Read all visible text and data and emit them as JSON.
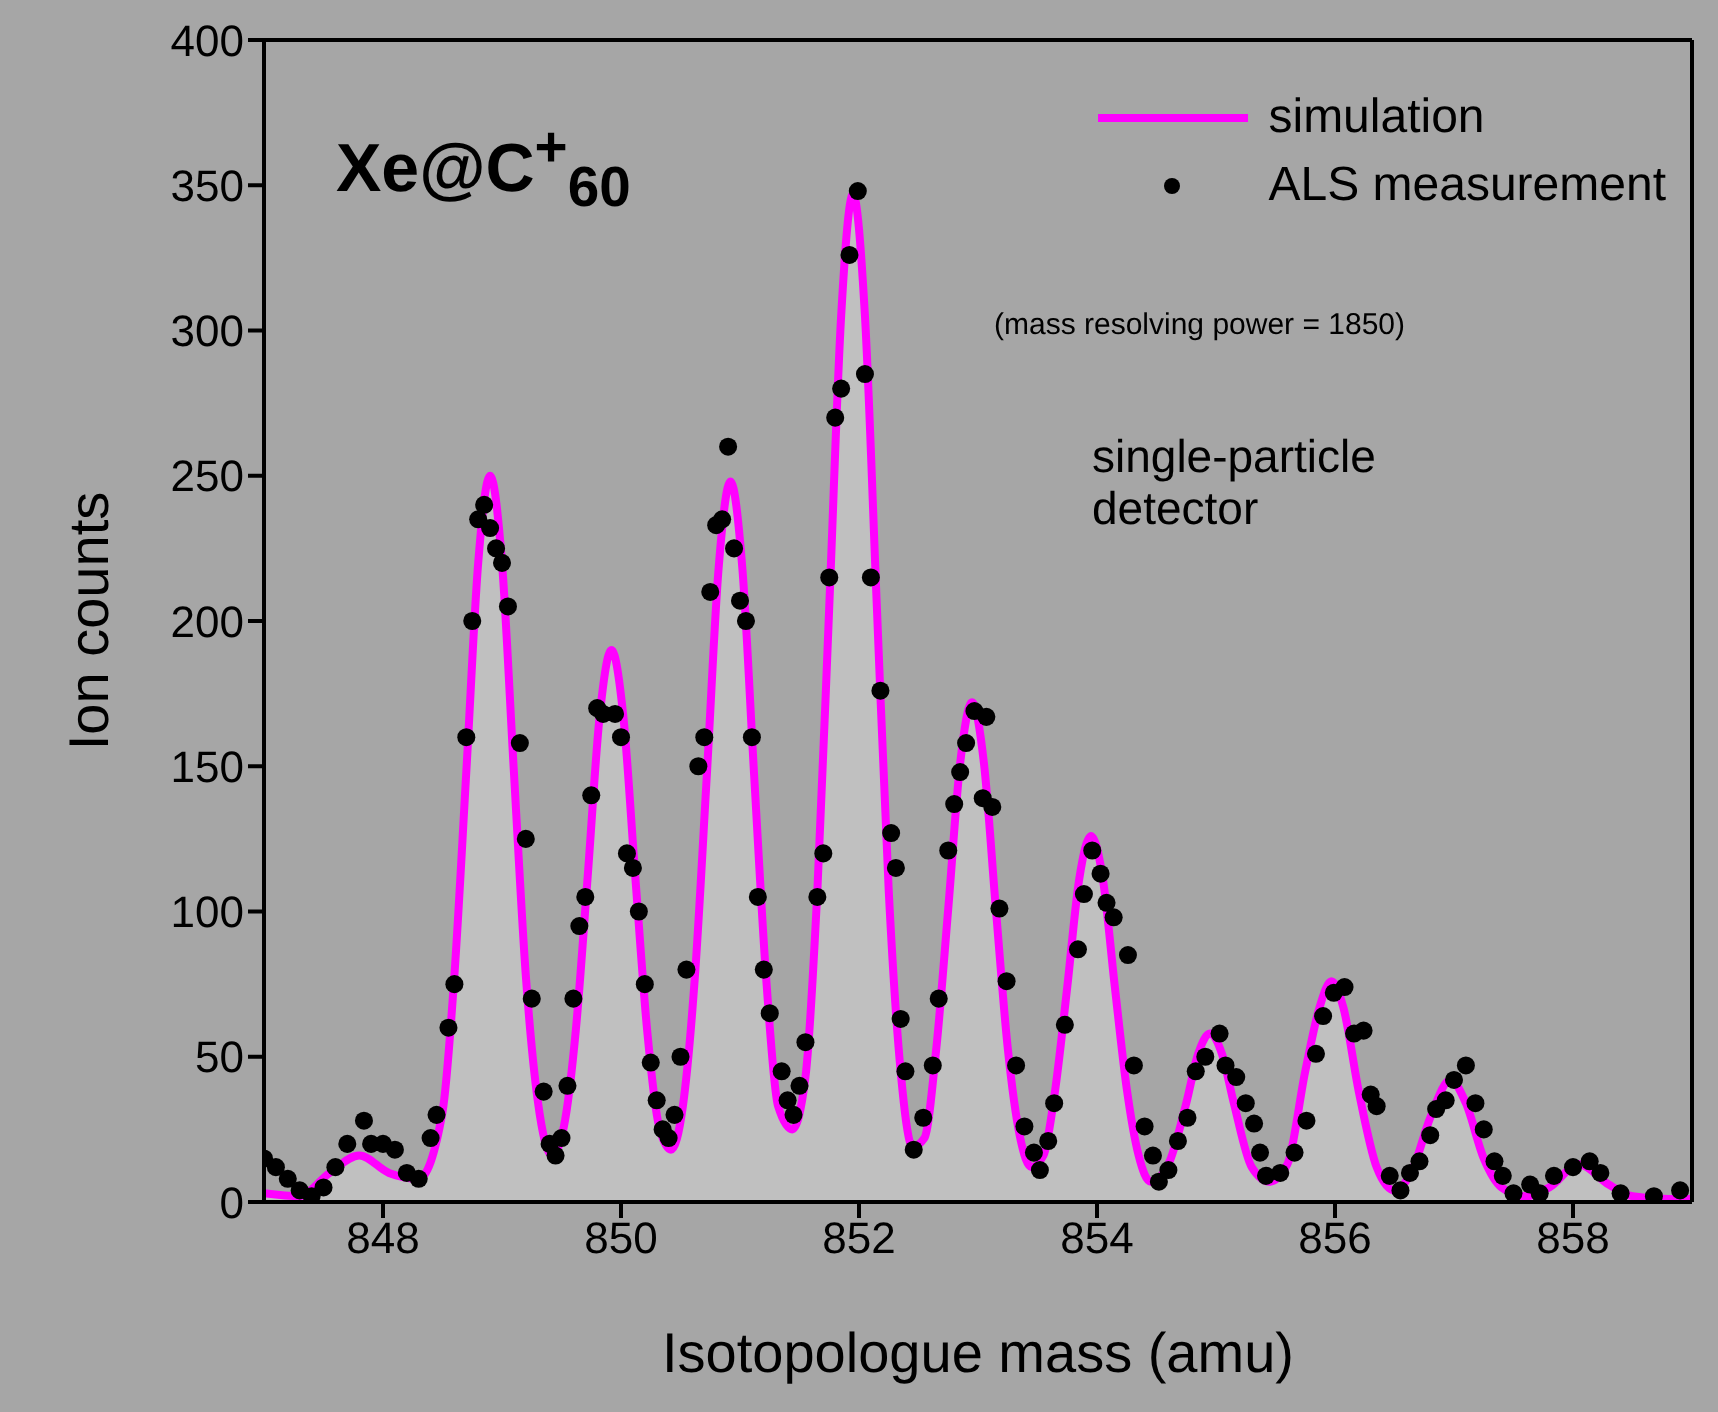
{
  "chart_data": {
    "type": "scatter",
    "xlabel": "Isotopologue mass (amu)",
    "ylabel": "Ion counts",
    "xlim": [
      847,
      859
    ],
    "xticks": [
      848,
      850,
      852,
      854,
      856,
      858
    ],
    "ylim": [
      0,
      400
    ],
    "yticks": [
      0,
      50,
      100,
      150,
      200,
      250,
      300,
      350,
      400
    ],
    "legend": "top right",
    "annotations": [
      "Xe@C$^{+}$$_{60}$",
      "(mass resolving power = 1850)",
      "single-particle detector"
    ],
    "series": [
      {
        "name": "simulation",
        "type": "area",
        "color": "#ff00ff",
        "marker": "none",
        "x": [
          847.0,
          847.3,
          847.55,
          847.8,
          848.05,
          848.3,
          848.5,
          848.6,
          848.7,
          848.8,
          848.9,
          849.0,
          849.1,
          849.2,
          849.3,
          849.42,
          849.52,
          849.62,
          849.72,
          849.82,
          849.92,
          850.02,
          850.12,
          850.22,
          850.32,
          850.42,
          850.52,
          850.62,
          850.72,
          850.82,
          850.92,
          851.02,
          851.12,
          851.22,
          851.32,
          851.44,
          851.55,
          851.65,
          851.75,
          851.85,
          851.95,
          852.05,
          852.15,
          852.25,
          852.35,
          852.45,
          852.55,
          852.65,
          852.75,
          852.85,
          852.95,
          853.05,
          853.15,
          853.25,
          853.35,
          853.45,
          853.55,
          853.65,
          853.75,
          853.85,
          853.95,
          854.05,
          854.15,
          854.25,
          854.35,
          854.45,
          854.6,
          854.75,
          854.85,
          854.95,
          855.05,
          855.15,
          855.3,
          855.45,
          855.6,
          855.75,
          855.87,
          855.97,
          856.07,
          856.2,
          856.35,
          856.5,
          856.65,
          856.8,
          856.97,
          857.1,
          857.25,
          857.4,
          857.6,
          857.8,
          858.05,
          858.3,
          858.5,
          858.8,
          859.0
        ],
        "values": [
          3,
          2,
          10,
          16,
          10,
          8,
          31,
          78,
          148,
          220,
          250,
          220,
          148,
          78,
          35,
          16,
          26,
          59,
          112,
          167,
          190,
          167,
          112,
          59,
          26,
          18,
          33,
          77,
          146,
          218,
          248,
          218,
          146,
          77,
          33,
          25,
          43,
          107,
          205,
          305,
          347,
          305,
          205,
          107,
          45,
          19,
          22,
          53,
          101,
          151,
          172,
          151,
          101,
          53,
          23,
          12,
          16,
          39,
          74,
          111,
          126,
          111,
          74,
          39,
          16,
          7,
          13,
          34,
          51,
          58,
          51,
          34,
          12,
          7,
          13,
          45,
          67,
          76,
          67,
          38,
          12,
          4,
          11,
          29,
          42,
          34,
          15,
          5,
          2,
          5,
          13,
          6,
          2,
          1,
          1
        ]
      },
      {
        "name": "ALS measurement",
        "color": "#000000",
        "marker": "circle",
        "x": [
          847.0,
          847.1,
          847.2,
          847.3,
          847.4,
          847.5,
          847.6,
          847.7,
          847.84,
          847.9,
          848.0,
          848.1,
          848.2,
          848.3,
          848.4,
          848.45,
          848.55,
          848.6,
          848.7,
          848.75,
          848.8,
          848.85,
          848.9,
          848.95,
          849.0,
          849.05,
          849.15,
          849.2,
          849.25,
          849.35,
          849.4,
          849.45,
          849.5,
          849.55,
          849.6,
          849.65,
          849.7,
          849.75,
          849.8,
          849.85,
          849.95,
          850.0,
          850.05,
          850.1,
          850.15,
          850.2,
          850.25,
          850.3,
          850.35,
          850.4,
          850.45,
          850.5,
          850.55,
          850.65,
          850.7,
          850.75,
          850.8,
          850.85,
          850.9,
          850.95,
          851.0,
          851.05,
          851.1,
          851.15,
          851.2,
          851.25,
          851.35,
          851.4,
          851.45,
          851.5,
          851.55,
          851.65,
          851.7,
          851.75,
          851.8,
          851.85,
          851.92,
          851.99,
          852.05,
          852.1,
          852.18,
          852.27,
          852.31,
          852.35,
          852.39,
          852.46,
          852.54,
          852.62,
          852.67,
          852.75,
          852.8,
          852.85,
          852.9,
          852.97,
          853.04,
          853.07,
          853.12,
          853.18,
          853.24,
          853.32,
          853.39,
          853.47,
          853.52,
          853.59,
          853.64,
          853.73,
          853.84,
          853.89,
          853.96,
          854.03,
          854.08,
          854.14,
          854.26,
          854.31,
          854.4,
          854.47,
          854.52,
          854.6,
          854.68,
          854.76,
          854.83,
          854.91,
          855.03,
          855.08,
          855.17,
          855.25,
          855.32,
          855.37,
          855.42,
          855.54,
          855.66,
          855.76,
          855.84,
          855.9,
          855.99,
          856.08,
          856.16,
          856.24,
          856.3,
          856.35,
          856.46,
          856.55,
          856.63,
          856.71,
          856.8,
          856.85,
          856.93,
          857.0,
          857.1,
          857.18,
          857.25,
          857.34,
          857.41,
          857.5,
          857.64,
          857.72,
          857.84,
          858.0,
          858.14,
          858.23,
          858.4,
          858.68,
          858.9
        ],
        "values": [
          15,
          12,
          8,
          4,
          2,
          5,
          12,
          20,
          28,
          20,
          20,
          18,
          10,
          8,
          22,
          30,
          60,
          75,
          160,
          200,
          235,
          240,
          232,
          225,
          220,
          205,
          158,
          125,
          70,
          38,
          20,
          16,
          22,
          40,
          70,
          95,
          105,
          140,
          170,
          168,
          168,
          160,
          120,
          115,
          100,
          75,
          48,
          35,
          25,
          22,
          30,
          50,
          80,
          150,
          160,
          210,
          233,
          235,
          260,
          225,
          207,
          200,
          160,
          105,
          80,
          65,
          45,
          35,
          30,
          40,
          55,
          105,
          120,
          215,
          270,
          280,
          326,
          348,
          285,
          215,
          176,
          127,
          115,
          63,
          45,
          18,
          29,
          47,
          70,
          121,
          137,
          148,
          158,
          169,
          139,
          167,
          136,
          101,
          76,
          47,
          26,
          17,
          11,
          21,
          34,
          61,
          87,
          106,
          121,
          113,
          103,
          98,
          85,
          47,
          26,
          16,
          7,
          11,
          21,
          29,
          45,
          50,
          58,
          47,
          43,
          34,
          27,
          17,
          9,
          10,
          17,
          28,
          51,
          64,
          72,
          74,
          58,
          59,
          37,
          33,
          9,
          4,
          10,
          14,
          23,
          32,
          35,
          42,
          47,
          34,
          25,
          14,
          9,
          3,
          6,
          3,
          9,
          12,
          14,
          10,
          3,
          2,
          4
        ]
      }
    ]
  }
}
